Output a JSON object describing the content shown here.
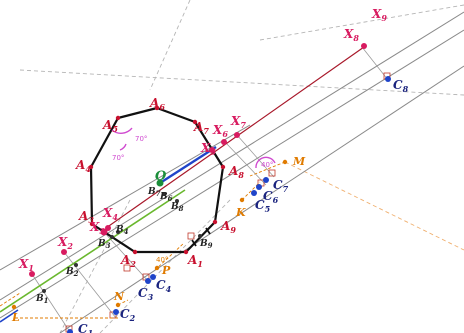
{
  "colors": {
    "polygon": "#111111",
    "vertex_label": "#c8102e",
    "x_label": "#d81b60",
    "c_label": "#1a237e",
    "b_label": "#222222",
    "orange": "#e07b00",
    "center": "#1b8e3a",
    "angle": "#d04ad0",
    "green_line": "#6ab82e",
    "gray_line": "#888888"
  },
  "labels": {
    "A1": "A",
    "A1s": "1",
    "A2": "A",
    "A2s": "2",
    "A3": "A",
    "A3s": "3",
    "A4": "A",
    "A4s": "4",
    "A5": "A",
    "A5s": "5",
    "A6": "A",
    "A6s": "6",
    "A7": "A",
    "A7s": "7",
    "A8": "A",
    "A8s": "8",
    "A9": "A",
    "A9s": "9",
    "O": "O",
    "X1": "X",
    "X1s": "1",
    "X2": "X",
    "X2s": "2",
    "X3": "X",
    "X3s": "3",
    "X4": "X",
    "X4s": "4",
    "X5": "X",
    "X5s": "5",
    "X6": "X",
    "X6s": "6",
    "X7": "X",
    "X7s": "7",
    "X8": "X",
    "X8s": "8",
    "X9": "X",
    "X9s": "9",
    "C1": "C",
    "C1s": "1",
    "C2": "C",
    "C2s": "2",
    "C3": "C",
    "C3s": "3",
    "C4": "C",
    "C4s": "4",
    "C5": "C",
    "C5s": "5",
    "C6": "C",
    "C6s": "6",
    "C7": "C",
    "C7s": "7",
    "C8": "C",
    "C8s": "8",
    "B1": "B",
    "B1s": "1",
    "B2": "B",
    "B2s": "2",
    "B3": "B",
    "B3s": "3",
    "B4": "B",
    "B4s": "4",
    "B6": "B",
    "B6s": "6",
    "B7": "B",
    "B7s": "7",
    "B8": "B",
    "B8s": "8",
    "B9": "B",
    "B9s": "9",
    "K": "K",
    "L": "L",
    "M": "M",
    "N": "N",
    "P": "P",
    "ang70a": "70°",
    "ang70b": "70°",
    "ang40a": "40°",
    "ang40b": "40°"
  }
}
